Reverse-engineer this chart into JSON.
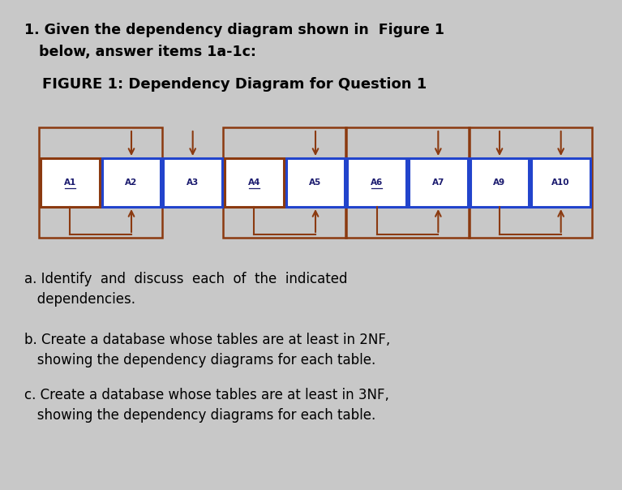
{
  "bg_color": "#c8c8c8",
  "title_line1": "1. Given the dependency diagram shown in  Figure 1",
  "title_line2": "   below, answer items 1a-1c:",
  "figure_label": "FIGURE 1: Dependency Diagram for Question 1",
  "attributes": [
    "A1",
    "A2",
    "A3",
    "A4",
    "A5",
    "A6",
    "A7",
    "A9",
    "A10"
  ],
  "underlined": [
    "A1",
    "A4",
    "A6"
  ],
  "blue_attrs": [
    "A2",
    "A3",
    "A5",
    "A6",
    "A7",
    "A9",
    "A10"
  ],
  "brown_attrs": [
    "A1",
    "A4"
  ],
  "box_color_brown": "#8B3A10",
  "box_color_blue": "#2244cc",
  "arrow_color": "#8B3A10",
  "text_color": "#1a1a6e",
  "down_arrow_attrs": [
    "A2",
    "A3",
    "A5",
    "A7",
    "A9",
    "A10"
  ],
  "bracket_pairs": [
    [
      "A1",
      "A2"
    ],
    [
      "A4",
      "A5"
    ],
    [
      "A6",
      "A7"
    ],
    [
      "A9",
      "A10"
    ]
  ],
  "q_a": "a. Identify  and  discuss  each  of  the  indicated\n   dependencies.",
  "q_b": "b. Create a database whose tables are at least in 2NF,\n   showing the dependency diagrams for each table.",
  "q_c": "c. Create a database whose tables are at least in 3NF,\n   showing the dependency diagrams for each table."
}
